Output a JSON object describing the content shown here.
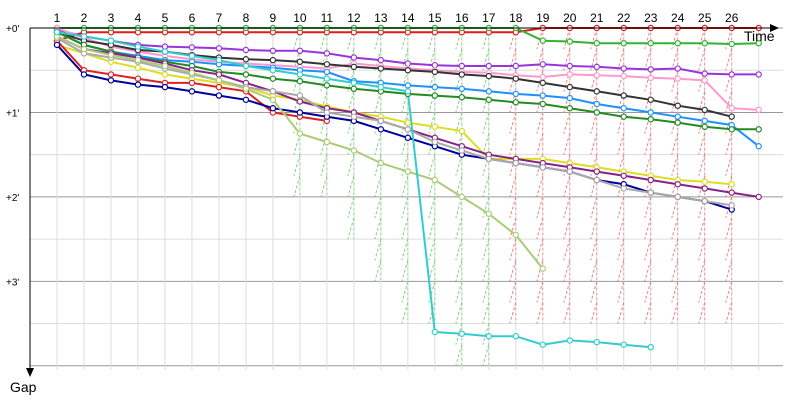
{
  "chart_data": {
    "type": "line",
    "title": "",
    "xlabel": "Time",
    "ylabel": "Gap",
    "x_ticks": [
      "1",
      "2",
      "3",
      "4",
      "5",
      "6",
      "7",
      "8",
      "9",
      "10",
      "11",
      "12",
      "13",
      "14",
      "15",
      "16",
      "17",
      "18",
      "19",
      "20",
      "21",
      "22",
      "23",
      "24",
      "25",
      "26"
    ],
    "y_ticks": [
      {
        "label": "+0'",
        "value": 0
      },
      {
        "label": "+1'",
        "value": 1
      },
      {
        "label": "+2'",
        "value": 2
      },
      {
        "label": "+3'",
        "value": 3
      }
    ],
    "ylim": [
      0,
      4.05
    ],
    "xlim": [
      0,
      27.9
    ],
    "grid": true,
    "pit_marker_colors": {
      "green": "#7fd07f",
      "red": "#f08080"
    },
    "series": [
      {
        "color": "#e41a1c",
        "values": [
          0.15,
          0.05,
          0.05,
          0.05,
          0.05,
          0.05,
          0.05,
          0.05,
          0.05,
          0.05,
          0.05,
          0.05,
          0.05,
          0.05,
          0.05,
          0.05,
          0.05,
          0.05,
          0.0,
          0.0,
          0.0,
          0.0,
          0.0,
          0.0,
          0.0,
          0.0,
          0.0
        ]
      },
      {
        "color": "#33b233",
        "values": [
          0.0,
          0.0,
          0.0,
          0.0,
          0.0,
          0.0,
          0.0,
          0.0,
          0.0,
          0.0,
          0.0,
          0.0,
          0.0,
          0.0,
          0.0,
          0.0,
          0.0,
          0.0,
          0.15,
          0.16,
          0.18,
          0.18,
          0.18,
          0.18,
          0.18,
          0.19,
          0.18
        ]
      },
      {
        "color": "#9933dd",
        "values": [
          0.02,
          0.1,
          0.15,
          0.2,
          0.22,
          0.23,
          0.24,
          0.26,
          0.27,
          0.27,
          0.3,
          0.35,
          0.38,
          0.42,
          0.44,
          0.45,
          0.45,
          0.45,
          0.43,
          0.45,
          0.46,
          0.48,
          0.49,
          0.48,
          0.54,
          0.55,
          0.55
        ]
      },
      {
        "color": "#ff99cc",
        "values": [
          0.0,
          0.12,
          0.22,
          0.28,
          0.33,
          0.37,
          0.4,
          0.42,
          0.44,
          0.46,
          0.48,
          0.42,
          0.45,
          0.48,
          0.5,
          0.52,
          0.53,
          0.56,
          0.58,
          0.55,
          0.56,
          0.57,
          0.59,
          0.6,
          0.62,
          0.95,
          0.97
        ]
      },
      {
        "color": "#333333",
        "values": [
          0.05,
          0.15,
          0.2,
          0.26,
          0.28,
          0.32,
          0.35,
          0.37,
          0.38,
          0.4,
          0.43,
          0.46,
          0.48,
          0.5,
          0.52,
          0.55,
          0.57,
          0.6,
          0.65,
          0.7,
          0.75,
          0.8,
          0.85,
          0.92,
          0.97,
          1.05,
          null
        ]
      },
      {
        "color": "#1e90ff",
        "values": [
          0.05,
          0.2,
          0.28,
          0.33,
          0.38,
          0.4,
          0.43,
          0.45,
          0.47,
          0.5,
          0.52,
          0.63,
          0.65,
          0.68,
          0.7,
          0.72,
          0.75,
          0.78,
          0.8,
          0.83,
          0.9,
          0.95,
          1.0,
          1.05,
          1.1,
          1.15,
          1.4
        ]
      },
      {
        "color": "#228b22",
        "values": [
          0.05,
          0.2,
          0.28,
          0.35,
          0.4,
          0.45,
          0.52,
          0.55,
          0.6,
          0.63,
          0.68,
          0.72,
          0.75,
          0.78,
          0.8,
          0.82,
          0.85,
          0.88,
          0.9,
          0.95,
          1.0,
          1.05,
          1.08,
          1.12,
          1.17,
          1.2,
          1.2
        ]
      },
      {
        "color": "#dddd22",
        "values": [
          0.2,
          0.3,
          0.4,
          0.47,
          0.55,
          0.6,
          0.65,
          0.7,
          0.8,
          0.85,
          0.93,
          1.0,
          1.05,
          1.12,
          1.17,
          1.22,
          1.55,
          1.55,
          1.55,
          1.6,
          1.65,
          1.7,
          1.75,
          1.8,
          1.82,
          1.85,
          null
        ]
      },
      {
        "color": "#dd2222",
        "values": [
          0.15,
          0.5,
          0.55,
          0.6,
          0.65,
          0.65,
          0.7,
          0.75,
          1.0,
          1.05,
          1.1,
          null,
          null,
          null,
          null,
          null,
          null,
          null,
          null,
          null,
          null,
          null,
          null,
          null,
          null,
          null,
          null
        ]
      },
      {
        "color": "#000099",
        "values": [
          0.2,
          0.55,
          0.62,
          0.67,
          0.7,
          0.75,
          0.8,
          0.85,
          0.95,
          1.0,
          1.05,
          1.1,
          1.2,
          1.3,
          1.4,
          1.5,
          1.55,
          1.6,
          1.65,
          1.7,
          1.8,
          1.85,
          1.95,
          2.0,
          2.05,
          2.15,
          null
        ]
      },
      {
        "color": "#882288",
        "values": [
          0.1,
          0.25,
          0.3,
          0.35,
          0.42,
          0.5,
          0.55,
          0.65,
          0.75,
          0.87,
          0.95,
          1.0,
          1.1,
          1.2,
          1.3,
          1.4,
          1.5,
          1.55,
          1.6,
          1.65,
          1.7,
          1.75,
          1.8,
          1.85,
          1.9,
          1.95,
          2.0
        ]
      },
      {
        "color": "#aaaaaa",
        "values": [
          0.12,
          0.3,
          0.35,
          0.4,
          0.48,
          0.55,
          0.62,
          0.7,
          0.75,
          0.8,
          1.0,
          1.05,
          1.1,
          1.2,
          1.35,
          1.45,
          1.55,
          1.6,
          1.65,
          1.7,
          1.8,
          1.9,
          1.95,
          2.0,
          2.05,
          2.1,
          null
        ]
      },
      {
        "color": "#aacc77",
        "values": [
          0.1,
          0.25,
          0.32,
          0.38,
          0.45,
          0.53,
          0.62,
          0.72,
          0.85,
          1.25,
          1.35,
          1.45,
          1.6,
          1.7,
          1.8,
          2.0,
          2.2,
          2.45,
          2.85,
          null,
          null,
          null,
          null,
          null,
          null,
          null,
          null
        ]
      },
      {
        "color": "#33cccc",
        "values": [
          0.05,
          0.1,
          0.15,
          0.22,
          0.28,
          0.33,
          0.38,
          0.45,
          0.5,
          0.55,
          0.6,
          0.65,
          0.7,
          0.75,
          3.6,
          3.62,
          3.65,
          3.65,
          3.75,
          3.7,
          3.72,
          3.75,
          3.78,
          null,
          null,
          null,
          null
        ]
      }
    ],
    "pit_stops": [
      {
        "x": 10,
        "rows": 8,
        "color": "#7fd07f"
      },
      {
        "x": 11,
        "rows": 8,
        "color": "#7fd07f"
      },
      {
        "x": 12,
        "rows": 10,
        "color": "#7fd07f"
      },
      {
        "x": 13,
        "rows": 12,
        "color": "#7fd07f"
      },
      {
        "x": 14,
        "rows": 14,
        "color": "#7fd07f"
      },
      {
        "x": 15,
        "rows": 14,
        "color": "#7fd07f"
      },
      {
        "x": 16,
        "rows": 16,
        "color": "#7fd07f"
      },
      {
        "x": 17,
        "rows": 16,
        "color": "#7fd07f"
      },
      {
        "x": 18,
        "rows": 14,
        "color": "#f08080"
      },
      {
        "x": 19,
        "rows": 14,
        "color": "#f08080"
      },
      {
        "x": 20,
        "rows": 14,
        "color": "#f08080"
      },
      {
        "x": 21,
        "rows": 14,
        "color": "#f08080"
      },
      {
        "x": 22,
        "rows": 14,
        "color": "#f08080"
      },
      {
        "x": 23,
        "rows": 14,
        "color": "#f08080"
      },
      {
        "x": 24,
        "rows": 14,
        "color": "#f08080"
      },
      {
        "x": 25,
        "rows": 14,
        "color": "#f08080"
      },
      {
        "x": 26,
        "rows": 14,
        "color": "#f08080"
      }
    ]
  }
}
